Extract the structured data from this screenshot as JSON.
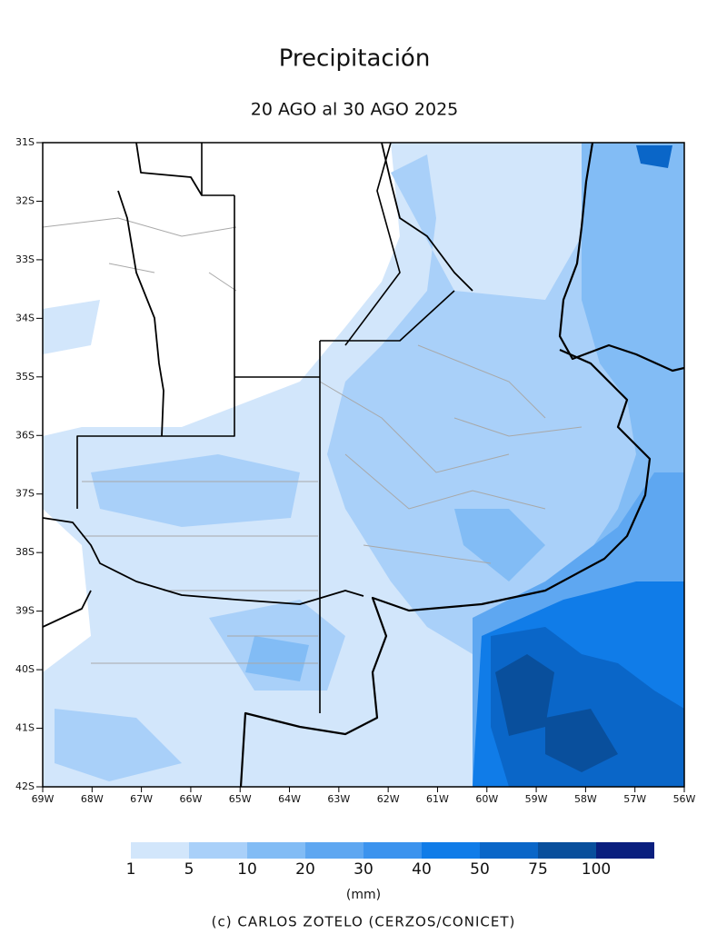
{
  "title": "Precipitación",
  "subtitle": "20 AGO al 30 AGO 2025",
  "lat_labels": [
    "31S",
    "32S",
    "33S",
    "34S",
    "35S",
    "36S",
    "37S",
    "38S",
    "39S",
    "40S",
    "41S",
    "42S"
  ],
  "lon_labels": [
    "69W",
    "68W",
    "67W",
    "66W",
    "65W",
    "64W",
    "63W",
    "62W",
    "61W",
    "60W",
    "59W",
    "58W",
    "57W",
    "56W"
  ],
  "colorbar": {
    "labels": [
      1,
      5,
      10,
      20,
      30,
      40,
      50,
      75,
      100
    ],
    "colors": [
      "#d2e6fb",
      "#a9d0f9",
      "#82bcf5",
      "#5ea7f1",
      "#3b93ee",
      "#107ce8",
      "#0a66c8",
      "#094f9c",
      "#0a1f7e"
    ],
    "unit": "(mm)"
  },
  "credit": "(c) CARLOS ZOTELO (CERZOS/CONICET)"
}
